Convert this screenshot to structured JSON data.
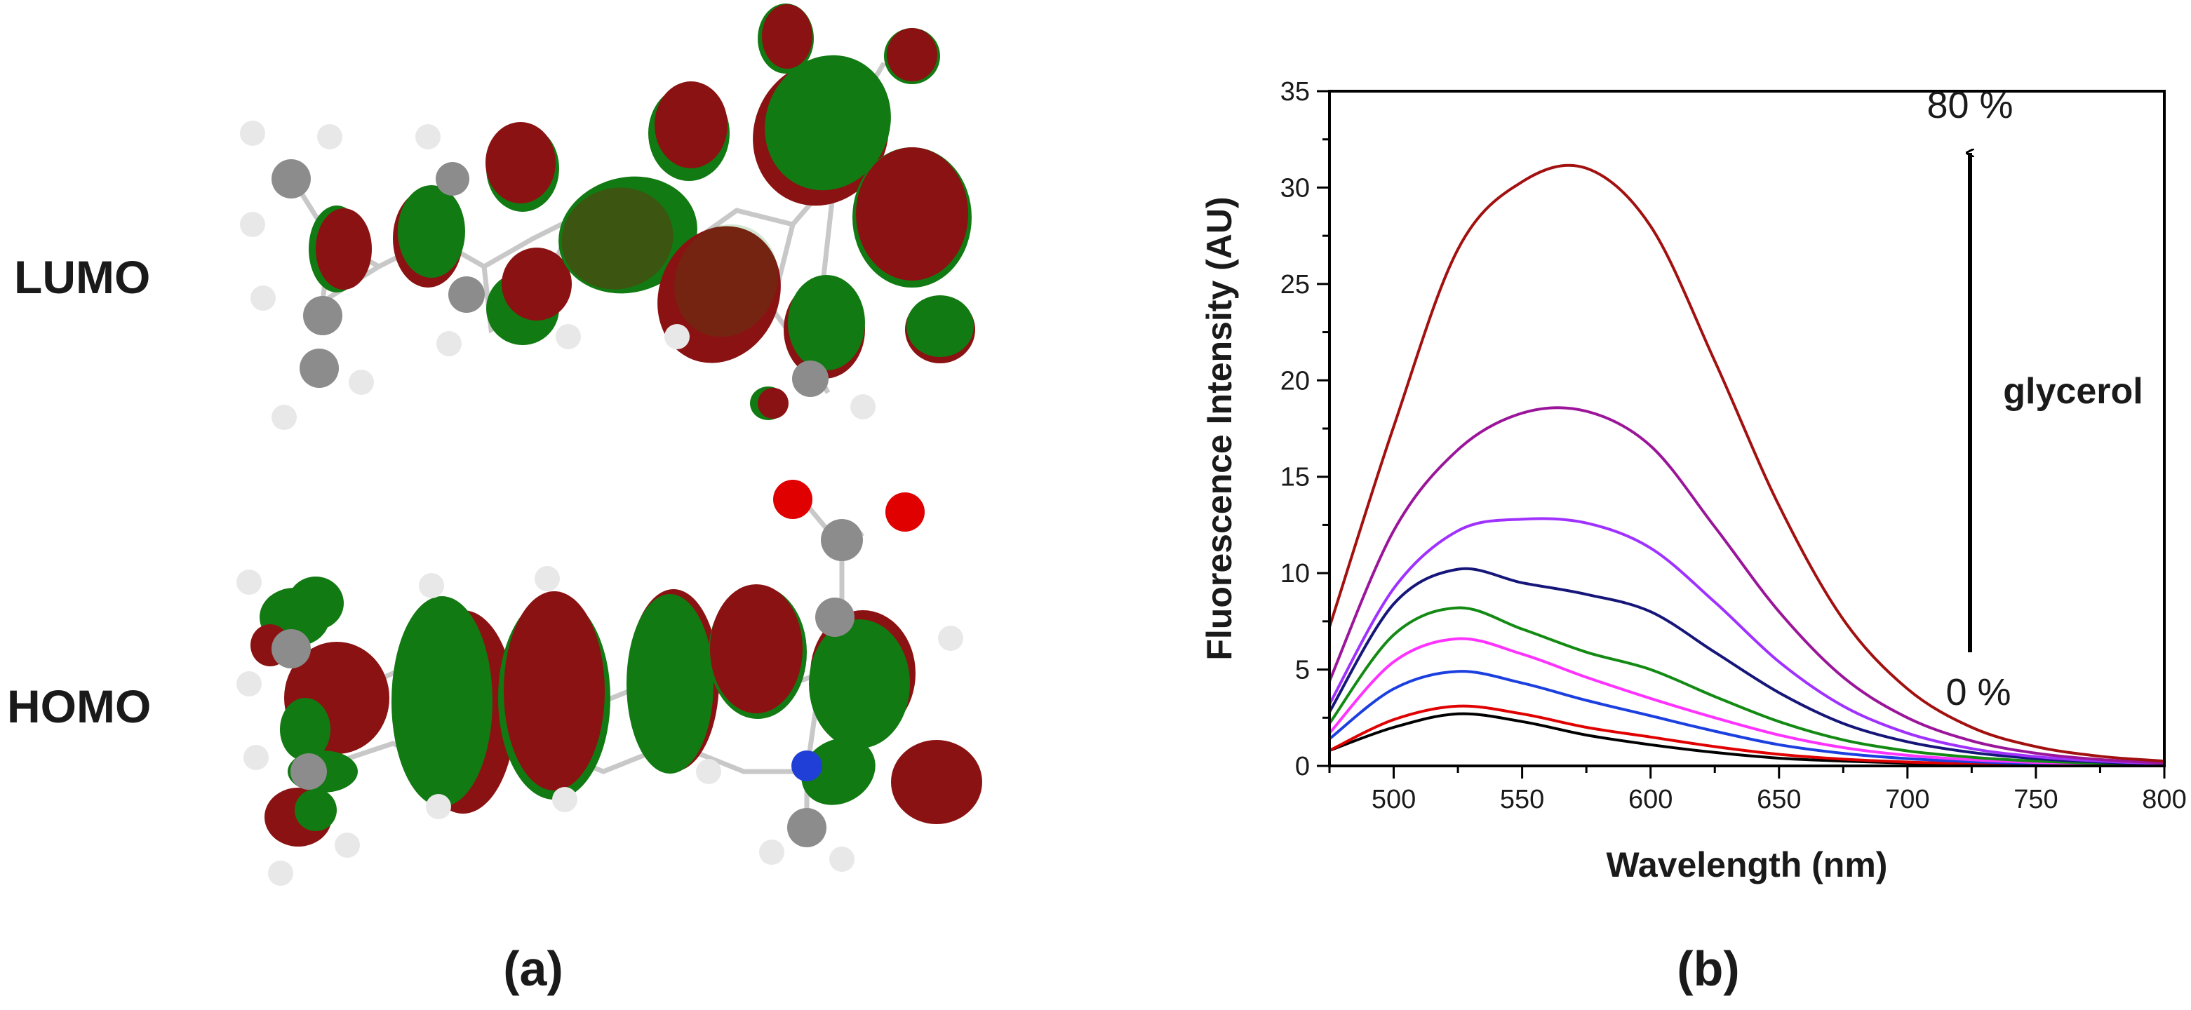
{
  "panel_a": {
    "caption": "(a)",
    "lumo_label": "LUMO",
    "homo_label": "HOMO",
    "lobe_colors": {
      "positive": "#8b1212",
      "negative": "#127a12"
    },
    "atom_colors": {
      "carbon": "#8c8c8c",
      "hydrogen": "#e8e8e8",
      "oxygen": "#e00000",
      "nitrogen": "#1f3fd6"
    }
  },
  "panel_b": {
    "caption": "(b)",
    "annotation_top": "80 %",
    "annotation_bottom": "0 %",
    "annotation_side": "glycerol"
  },
  "chart_data": {
    "type": "line",
    "xlabel": "Wavelength (nm)",
    "ylabel": "Fluorescence Intensity (AU)",
    "xlim": [
      475,
      800
    ],
    "ylim": [
      0,
      35
    ],
    "x_ticks": [
      500,
      550,
      600,
      650,
      700,
      750,
      800
    ],
    "y_ticks": [
      0,
      5,
      10,
      15,
      20,
      25,
      30,
      35
    ],
    "grid": false,
    "legend": "none",
    "x": [
      475,
      500,
      525,
      550,
      575,
      600,
      625,
      650,
      675,
      700,
      725,
      750,
      775,
      800
    ],
    "series": [
      {
        "color": "#000000",
        "values": [
          0.8,
          2.0,
          2.7,
          2.3,
          1.6,
          1.1,
          0.7,
          0.4,
          0.25,
          0.15,
          0.1,
          0.05,
          0.03,
          0.02
        ]
      },
      {
        "color": "#e00000",
        "values": [
          0.8,
          2.4,
          3.1,
          2.7,
          2.0,
          1.5,
          1.0,
          0.6,
          0.35,
          0.2,
          0.12,
          0.07,
          0.04,
          0.02
        ]
      },
      {
        "color": "#1c3fe0",
        "values": [
          1.4,
          4.0,
          4.9,
          4.3,
          3.4,
          2.6,
          1.8,
          1.1,
          0.65,
          0.38,
          0.22,
          0.12,
          0.07,
          0.04
        ]
      },
      {
        "color": "#ff33ff",
        "values": [
          1.7,
          5.4,
          6.6,
          5.8,
          4.6,
          3.5,
          2.5,
          1.6,
          0.95,
          0.55,
          0.32,
          0.18,
          0.1,
          0.06
        ]
      },
      {
        "color": "#138a13",
        "values": [
          2.2,
          6.8,
          8.2,
          7.1,
          5.9,
          5.0,
          3.6,
          2.3,
          1.35,
          0.78,
          0.45,
          0.25,
          0.14,
          0.08
        ]
      },
      {
        "color": "#16167a",
        "values": [
          2.8,
          8.4,
          10.2,
          9.5,
          8.9,
          8.0,
          5.9,
          3.8,
          2.2,
          1.25,
          0.7,
          0.38,
          0.2,
          0.1
        ]
      },
      {
        "color": "#a032ff",
        "values": [
          3.2,
          9.2,
          12.2,
          12.8,
          12.6,
          11.3,
          8.5,
          5.4,
          3.1,
          1.7,
          0.9,
          0.48,
          0.25,
          0.12
        ]
      },
      {
        "color": "#9b159b",
        "values": [
          4.4,
          12.2,
          16.4,
          18.3,
          18.4,
          16.6,
          12.4,
          8.0,
          4.6,
          2.5,
          1.3,
          0.66,
          0.33,
          0.15
        ]
      },
      {
        "color": "#a21010",
        "values": [
          7.2,
          17.6,
          26.8,
          30.3,
          31.0,
          28.0,
          21.0,
          13.5,
          7.6,
          4.0,
          2.0,
          1.0,
          0.5,
          0.25
        ]
      }
    ]
  }
}
